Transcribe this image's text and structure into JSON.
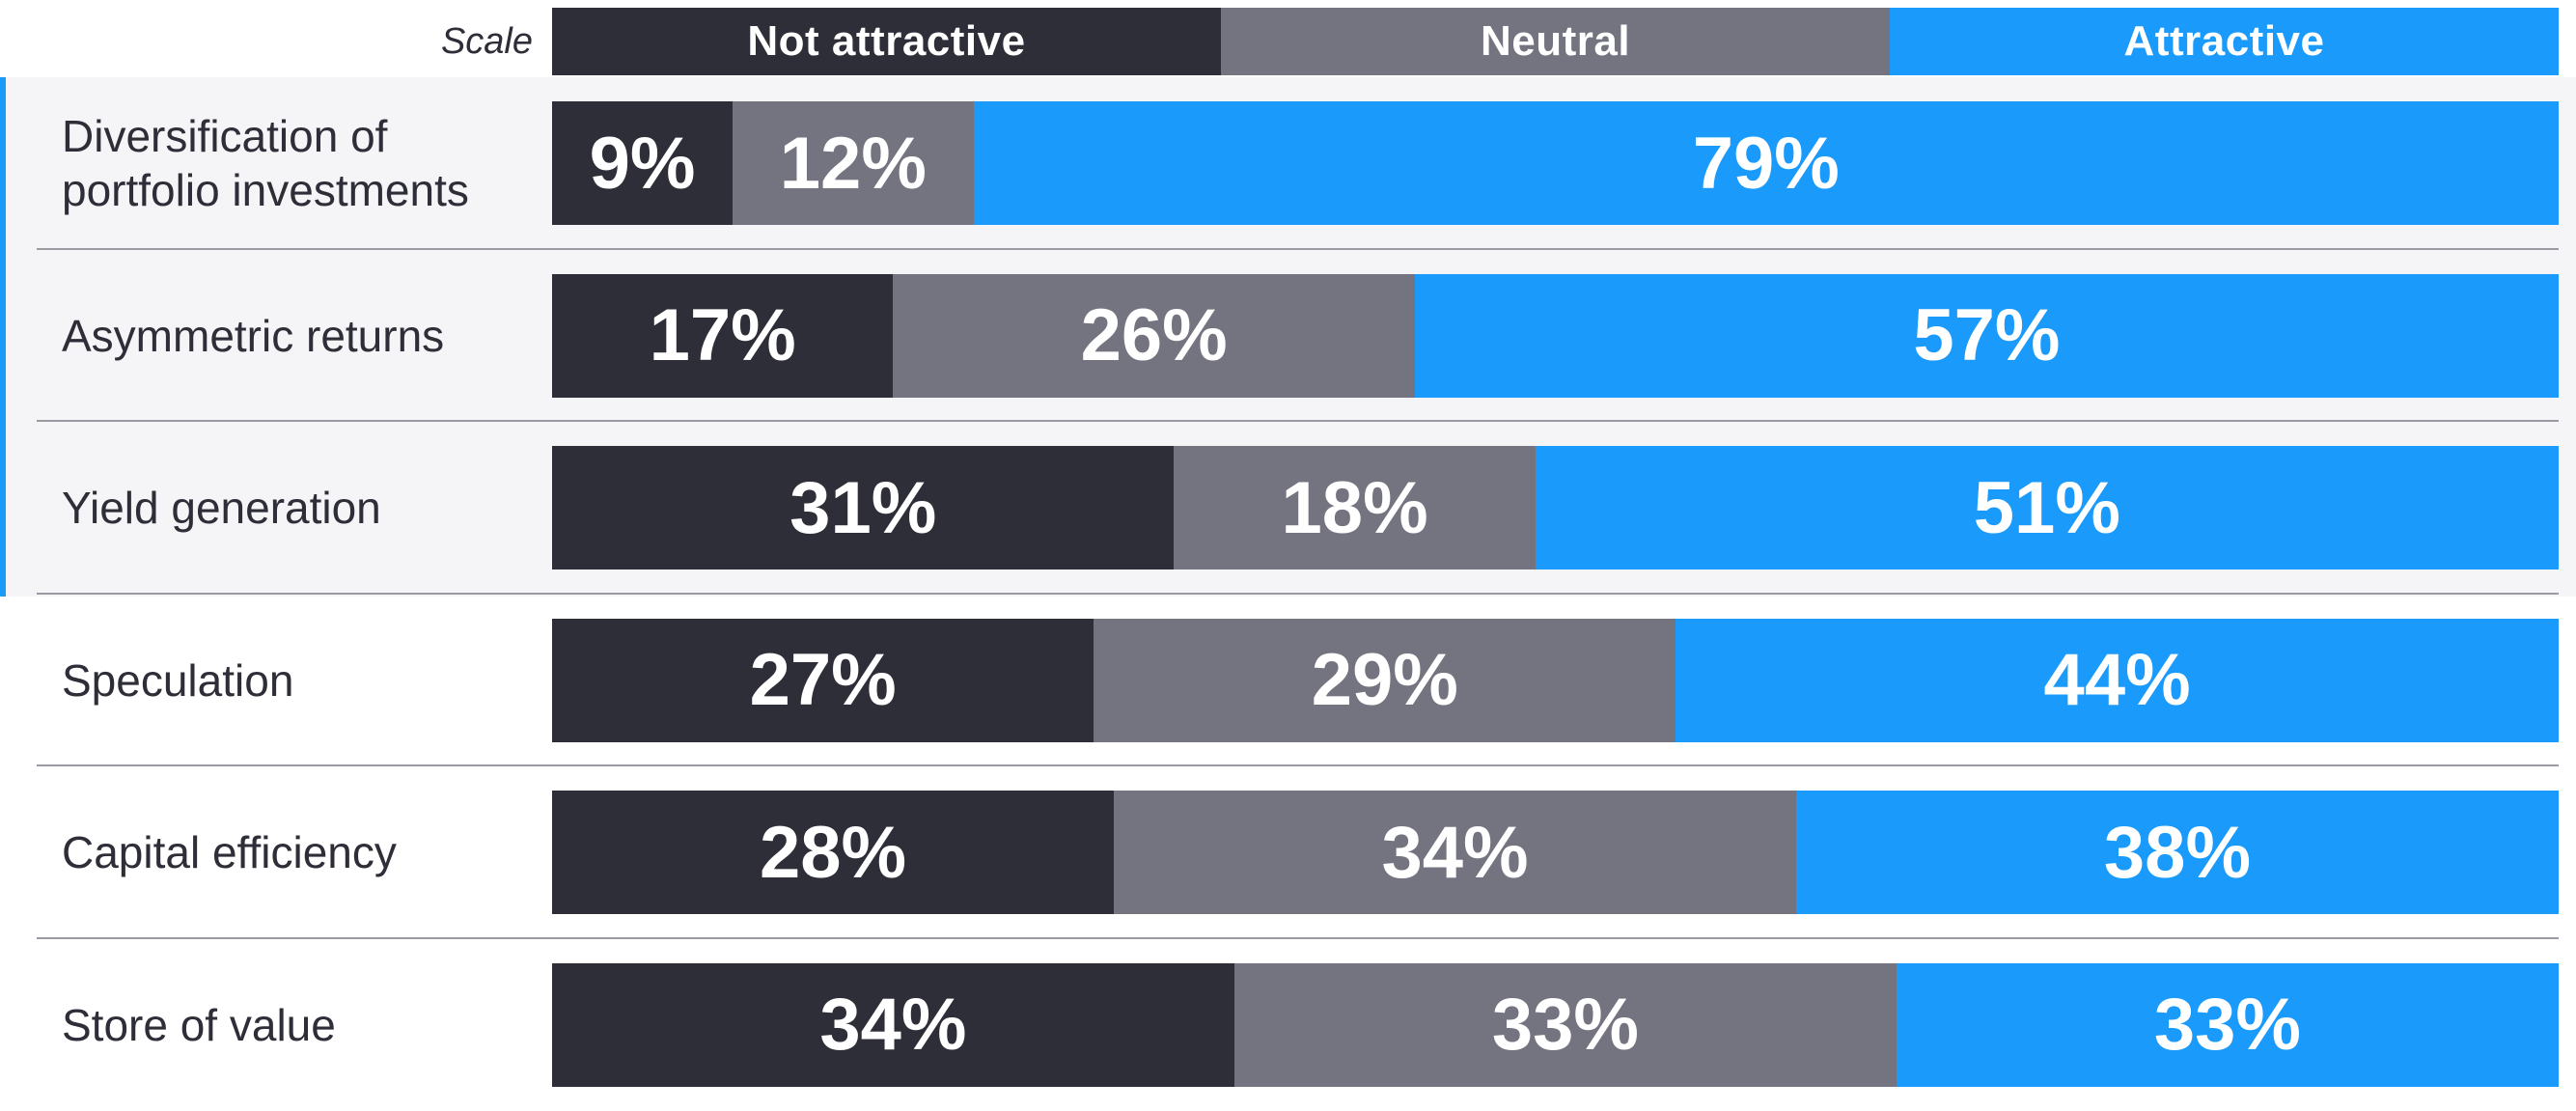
{
  "chart_data": {
    "type": "bar",
    "orientation": "horizontal",
    "stacked": true,
    "normalized": true,
    "scale_label": "Scale",
    "legend_position": "top",
    "categories": [
      "Diversification of portfolio investments",
      "Asymmetric returns",
      "Yield generation",
      "Speculation",
      "Capital efficiency",
      "Store of value"
    ],
    "series": [
      {
        "name": "Not attractive",
        "color": "#2e2e38",
        "values": [
          9,
          17,
          31,
          27,
          28,
          34
        ]
      },
      {
        "name": "Neutral",
        "color": "#747480",
        "values": [
          12,
          26,
          18,
          29,
          34,
          33
        ]
      },
      {
        "name": "Attractive",
        "color": "#1a9afa",
        "values": [
          79,
          57,
          51,
          44,
          38,
          33
        ]
      }
    ],
    "value_suffix": "%",
    "highlighted_rows": 3,
    "accent_color": "#1a9afa"
  }
}
